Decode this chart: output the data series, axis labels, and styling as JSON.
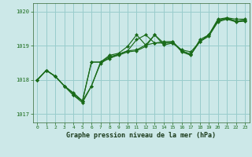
{
  "title": "Graphe pression niveau de la mer (hPa)",
  "background_color": "#cce8e8",
  "grid_color": "#99cccc",
  "line_color": "#1a6b1a",
  "marker_color": "#1a6b1a",
  "xlim": [
    -0.5,
    23.5
  ],
  "ylim": [
    1016.75,
    1020.25
  ],
  "yticks": [
    1017,
    1018,
    1019,
    1020
  ],
  "xticks": [
    0,
    1,
    2,
    3,
    4,
    5,
    6,
    7,
    8,
    9,
    10,
    11,
    12,
    13,
    14,
    15,
    16,
    17,
    18,
    19,
    20,
    21,
    22,
    23
  ],
  "series": [
    [
      1018.0,
      1018.28,
      1018.1,
      1017.82,
      1017.62,
      1017.38,
      1017.82,
      1018.52,
      1018.68,
      1018.75,
      1018.85,
      1018.88,
      1019.02,
      1019.32,
      1019.08,
      1019.08,
      1018.88,
      1018.82,
      1019.12,
      1019.32,
      1019.72,
      1019.82,
      1019.78,
      1019.78
    ],
    [
      1018.0,
      1018.28,
      1018.1,
      1017.82,
      1017.6,
      1017.38,
      1018.52,
      1018.52,
      1018.72,
      1018.78,
      1018.98,
      1019.32,
      1019.02,
      1019.08,
      1019.08,
      1019.12,
      1018.82,
      1018.72,
      1019.18,
      1019.32,
      1019.78,
      1019.82,
      1019.72,
      1019.75
    ],
    [
      1018.0,
      1018.28,
      1018.1,
      1017.82,
      1017.55,
      1017.38,
      1018.52,
      1018.52,
      1018.62,
      1018.75,
      1018.85,
      1019.18,
      1019.32,
      1019.08,
      1019.12,
      1019.12,
      1018.85,
      1018.75,
      1019.12,
      1019.32,
      1019.75,
      1019.8,
      1019.72,
      1019.75
    ],
    [
      1018.0,
      1018.28,
      1018.1,
      1017.82,
      1017.55,
      1017.33,
      1017.82,
      1018.48,
      1018.65,
      1018.72,
      1018.82,
      1018.85,
      1018.98,
      1019.32,
      1019.02,
      1019.08,
      1018.85,
      1018.75,
      1019.12,
      1019.28,
      1019.7,
      1019.78,
      1019.7,
      1019.72
    ]
  ]
}
